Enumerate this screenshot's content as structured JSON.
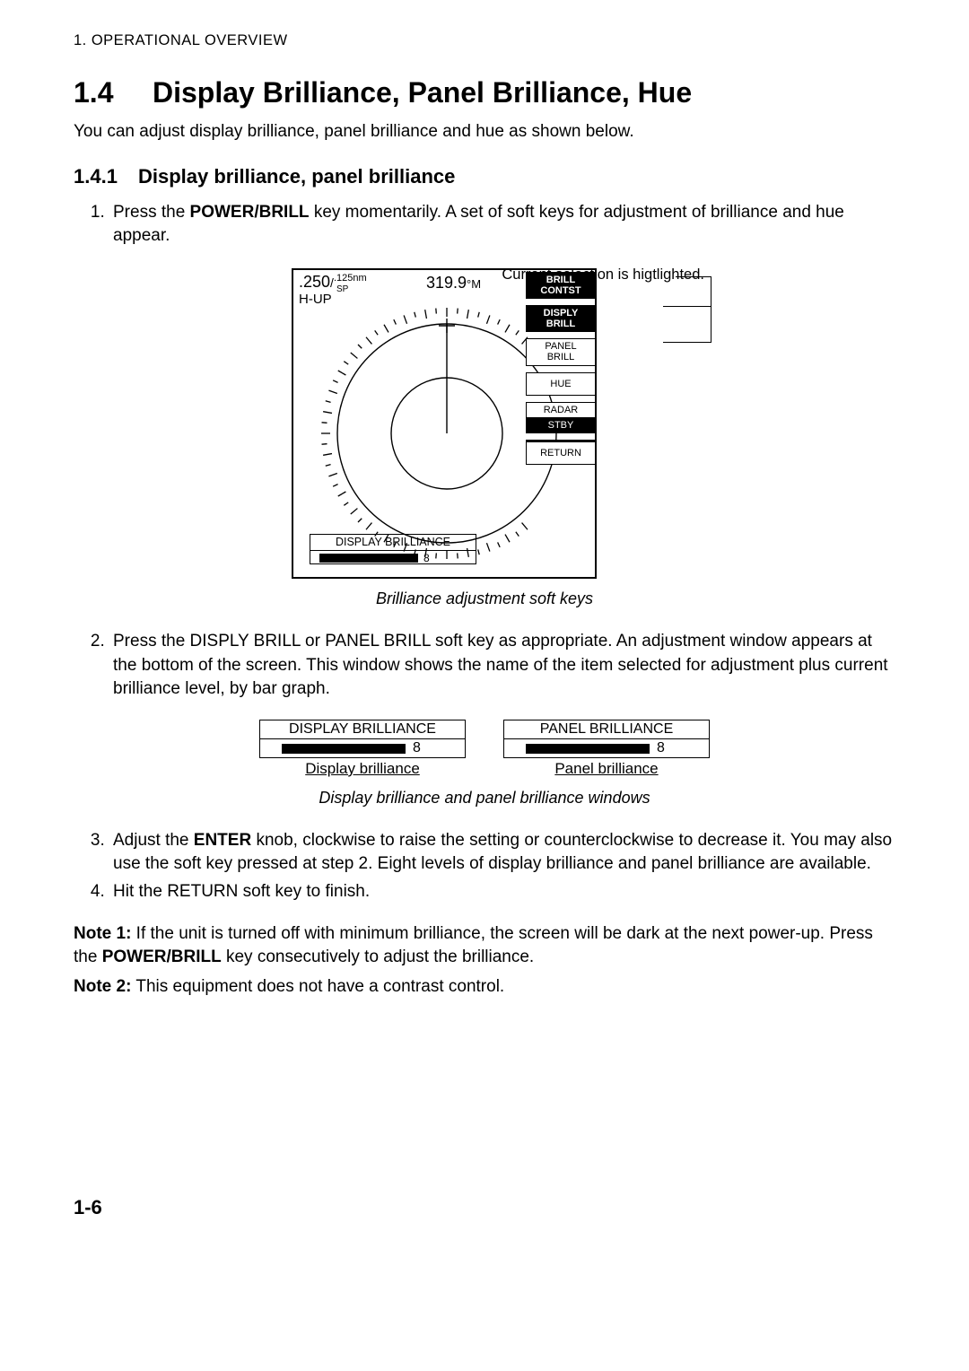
{
  "running_head": "1. OPERATIONAL OVERVIEW",
  "section": {
    "num": "1.4",
    "title": "Display Brilliance, Panel Brilliance, Hue"
  },
  "intro": "You can adjust display brilliance, panel brilliance and hue as shown below.",
  "subsection": {
    "num": "1.4.1",
    "title": "Display brilliance, panel brilliance"
  },
  "step1": {
    "pre": "Press the ",
    "key": "POWER/BRILL",
    "post": " key momentarily. A set of soft keys for adjustment of brilliance and hue appear."
  },
  "radar": {
    "annotation": "Current selection is higtlighted.",
    "range": ".250",
    "range_sub": "SP",
    "range_unit": ".125nm",
    "hup": "H-UP",
    "bearing": "319.9",
    "bearing_suffix": "°M",
    "softkeys": [
      {
        "l1": "BRILL",
        "l2": "CONTST",
        "style": "inverted"
      },
      {
        "l1": "DISPLY",
        "l2": "BRILL",
        "style": "inverted-thin"
      },
      {
        "l1": "PANEL",
        "l2": "BRILL",
        "style": "plain"
      },
      {
        "l1": "HUE",
        "l2": "",
        "style": "plain"
      },
      {
        "l1": "RADAR",
        "l2": "STBY",
        "style": "split"
      },
      {
        "l1": "RETURN",
        "l2": "",
        "style": "thick"
      }
    ],
    "disp_brill": {
      "label": "DISPLAY BRILLIANCE",
      "value": "8",
      "level": 8,
      "max": 8
    },
    "colors": {
      "fg": "#000000",
      "bg": "#ffffff"
    }
  },
  "caption1": "Brilliance adjustment soft keys",
  "step2": "Press the DISPLY BRILL or PANEL BRILL soft key as appropriate. An adjustment window appears at the bottom of the screen. This window shows the name of the item selected for adjustment plus current brilliance level, by bar graph.",
  "windows": {
    "left": {
      "title": "DISPLAY BRILLIANCE",
      "value": "8",
      "caption": "Display brilliance"
    },
    "right": {
      "title": "PANEL BRILLIANCE",
      "value": "8",
      "caption": "Panel brilliance"
    }
  },
  "caption2": "Display brilliance and panel brilliance windows",
  "step3": {
    "pre": "Adjust the ",
    "key": "ENTER",
    "post": " knob, clockwise to raise the setting or counterclockwise to decrease it. You may also use the soft key pressed at step 2. Eight levels of display brilliance and panel brilliance are available."
  },
  "step4": "Hit the RETURN soft key to finish.",
  "note1": {
    "label": "Note 1:",
    "pre": " If the unit is turned off with minimum brilliance, the screen will be dark at the next power-up. Press the ",
    "key": "POWER/BRILL",
    "post": " key consecutively to adjust the brilliance."
  },
  "note2": {
    "label": "Note 2:",
    "text": " This equipment does not have a contrast control."
  },
  "page_number": "1-6"
}
